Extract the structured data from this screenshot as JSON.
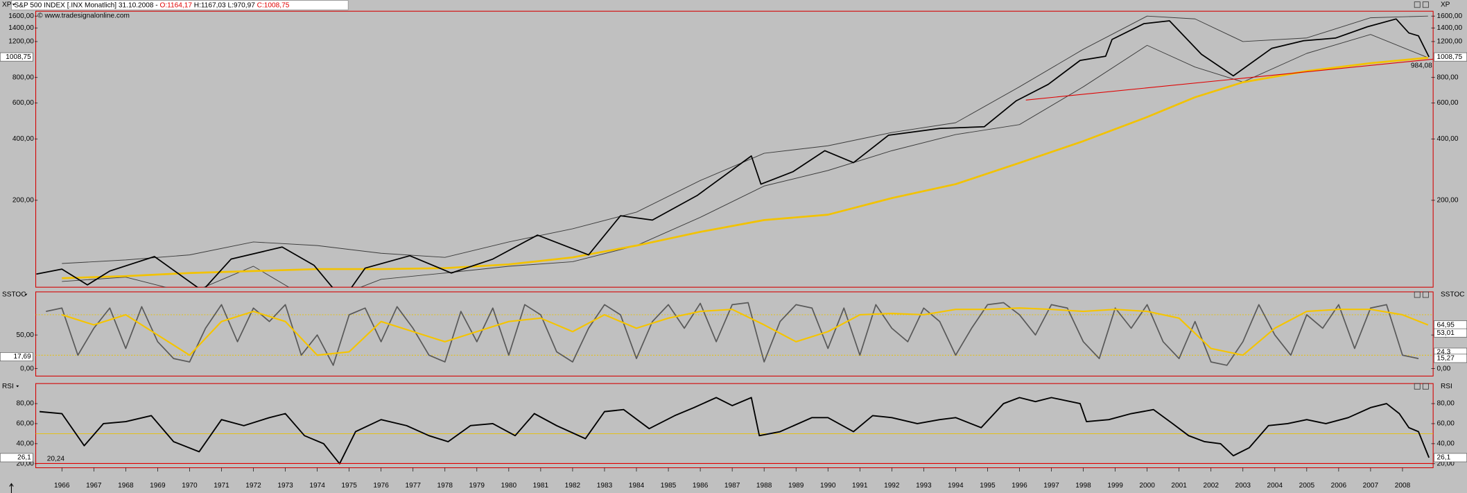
{
  "header": {
    "instrument": "S&P 500 INDEX [.INX  Monatlich] 31.10.2008 -",
    "open": "O:1164,17",
    "high": "H:1167,03",
    "low": "L:970,97",
    "close": "C:1008,75",
    "copyright": "© www.tradesignalonline.com"
  },
  "chart_data": [
    {
      "type": "line",
      "title": "XP",
      "log_y": true,
      "grid": false,
      "xlim": [
        1965.18,
        2008.96
      ],
      "ylim": [
        75,
        1690
      ],
      "yticks": [
        {
          "value": 200,
          "label": "200,00"
        },
        {
          "value": 400,
          "label": "400,00"
        },
        {
          "value": 600,
          "label": "600,00"
        },
        {
          "value": 800,
          "label": "800,00"
        },
        {
          "value": 1200,
          "label": "1200,00"
        },
        {
          "value": 1400,
          "label": "1400,00"
        },
        {
          "value": 1600,
          "label": "1600,00"
        }
      ],
      "series": [
        {
          "color": "#3a3a3a",
          "width": 0.7,
          "x": [
            1966,
            1968,
            1970,
            1972,
            1974,
            1976,
            1978,
            1980,
            1982,
            1984,
            1986,
            1988,
            1990,
            1992,
            1994,
            1996,
            1998,
            2000,
            2001.5,
            2003,
            2005,
            2007,
            2008.8
          ],
          "values": [
            98,
            102,
            108,
            125,
            120,
            110,
            105,
            125,
            145,
            175,
            250,
            340,
            370,
            430,
            480,
            720,
            1100,
            1600,
            1550,
            1200,
            1250,
            1570,
            1600
          ]
        },
        {
          "color": "#3a3a3a",
          "width": 0.7,
          "x": [
            1966,
            1968,
            1970,
            1972,
            1974,
            1976,
            1978,
            1980,
            1982,
            1984,
            1986,
            1988,
            1990,
            1992,
            1994,
            1996,
            1998,
            2000,
            2001.5,
            2003,
            2005,
            2007,
            2008.8
          ],
          "values": [
            80,
            84,
            70,
            95,
            62,
            82,
            88,
            95,
            100,
            120,
            165,
            235,
            280,
            350,
            420,
            470,
            720,
            1150,
            900,
            760,
            1050,
            1300,
            1000
          ]
        },
        {
          "color": "#f2c200",
          "width": 2,
          "x": [
            1966,
            1968,
            1970,
            1972,
            1974,
            1976,
            1978,
            1980,
            1982,
            1984,
            1986,
            1988,
            1990,
            1992,
            1994,
            1996,
            1998,
            2000,
            2001.5,
            2003,
            2005,
            2007,
            2008.8
          ],
          "values": [
            83,
            85,
            88,
            90,
            92,
            92,
            93,
            97,
            105,
            120,
            140,
            160,
            170,
            205,
            240,
            305,
            390,
            512,
            640,
            758,
            860,
            940,
            1000
          ]
        },
        {
          "color": "#e00000",
          "width": 0.8,
          "x": [
            1996.2,
            2008.96
          ],
          "values": [
            620,
            984.08
          ],
          "value_labels": [
            null,
            "984,08"
          ]
        },
        {
          "color": "#000000",
          "width": 1.3,
          "x": [
            1965.2,
            1966.0,
            1966.8,
            1967.5,
            1968.9,
            1970.4,
            1971.3,
            1972.9,
            1973.9,
            1974.8,
            1975.5,
            1976.9,
            1978.2,
            1979.5,
            1980.9,
            1982.5,
            1983.5,
            1984.5,
            1985.9,
            1987.6,
            1987.9,
            1988.9,
            1989.9,
            1990.8,
            1991.9,
            1993.5,
            1994.9,
            1995.9,
            1996.9,
            1997.9,
            1998.7,
            1998.9,
            1999.9,
            2000.7,
            2001.7,
            2002.7,
            2003.9,
            2004.9,
            2005.9,
            2006.9,
            2007.8,
            2008.2,
            2008.5,
            2008.83
          ],
          "values": [
            87,
            92,
            77,
            90,
            106,
            72,
            103,
            118,
            96,
            65,
            93,
            107,
            88,
            103,
            135,
            108,
            168,
            160,
            211,
            330,
            240,
            276,
            350,
            306,
            417,
            450,
            459,
            615,
            740,
            970,
            1017,
            1229,
            1469,
            1517,
            1040,
            815,
            1111,
            1211,
            1248,
            1418,
            1549,
            1322,
            1280,
            1008.75
          ]
        }
      ],
      "last_labels": [
        {
          "value": 1008.75,
          "label": "1008,75",
          "side": "both"
        }
      ]
    },
    {
      "type": "line",
      "title": "SSTOC",
      "grid": false,
      "xlim": [
        1965.18,
        2008.96
      ],
      "ylim": [
        -11,
        114
      ],
      "yticks": [
        {
          "value": 0,
          "label": "0,00"
        },
        {
          "value": 50,
          "label": "50,00"
        }
      ],
      "reference_lines": [
        80,
        20
      ],
      "reference_color": "#e8c000",
      "series": [
        {
          "color": "#5a5a5a",
          "width": 1.3,
          "x": [
            1965.5,
            1966,
            1966.5,
            1967,
            1967.5,
            1968,
            1968.5,
            1969,
            1969.5,
            1970,
            1970.5,
            1971,
            1971.5,
            1972,
            1972.5,
            1973,
            1973.5,
            1974,
            1974.5,
            1975,
            1975.5,
            1976,
            1976.5,
            1977,
            1977.5,
            1978,
            1978.5,
            1979,
            1979.5,
            1980,
            1980.5,
            1981,
            1981.5,
            1982,
            1982.5,
            1983,
            1983.5,
            1984,
            1984.5,
            1985,
            1985.5,
            1986,
            1986.5,
            1987,
            1987.5,
            1988,
            1988.5,
            1989,
            1989.5,
            1990,
            1990.5,
            1991,
            1991.5,
            1992,
            1992.5,
            1993,
            1993.5,
            1994,
            1994.5,
            1995,
            1995.5,
            1996,
            1996.5,
            1997,
            1997.5,
            1998,
            1998.5,
            1999,
            1999.5,
            2000,
            2000.5,
            2001,
            2001.5,
            2002,
            2002.5,
            2003,
            2003.5,
            2004,
            2004.5,
            2005,
            2005.5,
            2006,
            2006.5,
            2007,
            2007.5,
            2008,
            2008.5
          ],
          "values": [
            85,
            90,
            20,
            60,
            90,
            30,
            92,
            40,
            15,
            10,
            60,
            95,
            40,
            90,
            70,
            95,
            20,
            50,
            5,
            80,
            90,
            40,
            92,
            60,
            20,
            10,
            85,
            40,
            90,
            20,
            95,
            80,
            25,
            10,
            60,
            95,
            80,
            15,
            70,
            95,
            60,
            97,
            40,
            95,
            98,
            10,
            70,
            95,
            90,
            30,
            90,
            20,
            95,
            60,
            40,
            90,
            70,
            20,
            60,
            95,
            98,
            80,
            50,
            95,
            90,
            40,
            15,
            90,
            60,
            95,
            40,
            15,
            70,
            10,
            5,
            40,
            95,
            50,
            20,
            80,
            60,
            95,
            30,
            90,
            95,
            20,
            15
          ]
        },
        {
          "color": "#f5c400",
          "width": 1.6,
          "x": [
            1966,
            1967,
            1968,
            1969,
            1970,
            1971,
            1972,
            1973,
            1974,
            1975,
            1976,
            1977,
            1978,
            1979,
            1980,
            1981,
            1982,
            1983,
            1984,
            1985,
            1986,
            1987,
            1988,
            1989,
            1990,
            1991,
            1992,
            1993,
            1994,
            1995,
            1996,
            1997,
            1998,
            1999,
            2000,
            2001,
            2002,
            2003,
            2004,
            2005,
            2006,
            2007,
            2008,
            2008.8
          ],
          "values": [
            80,
            65,
            80,
            50,
            20,
            70,
            85,
            70,
            20,
            25,
            70,
            55,
            40,
            55,
            70,
            75,
            55,
            80,
            60,
            75,
            85,
            88,
            65,
            40,
            55,
            80,
            82,
            80,
            88,
            88,
            90,
            88,
            85,
            88,
            85,
            75,
            30,
            20,
            60,
            85,
            88,
            88,
            80,
            64.95
          ]
        }
      ],
      "last_labels": [
        {
          "value": 64.95,
          "label": "64,95",
          "side": "right"
        },
        {
          "value": 53.01,
          "label": "53,01",
          "side": "right"
        },
        {
          "value": 24.3,
          "label": "24,3",
          "side": "right"
        },
        {
          "value": 15.27,
          "label": "15,27",
          "side": "right"
        },
        {
          "value": 17.69,
          "label": "17,69",
          "side": "left"
        }
      ]
    },
    {
      "type": "line",
      "title": "RSI",
      "grid": false,
      "xlim": [
        1965.18,
        2008.96
      ],
      "ylim": [
        16,
        100
      ],
      "yticks": [
        {
          "value": 20,
          "label": "20,00"
        },
        {
          "value": 40,
          "label": "40,00"
        },
        {
          "value": 60,
          "label": "60,00"
        },
        {
          "value": 80,
          "label": "80,00"
        }
      ],
      "xticks": [
        1966,
        1967,
        1968,
        1969,
        1970,
        1971,
        1972,
        1973,
        1974,
        1975,
        1976,
        1977,
        1978,
        1979,
        1980,
        1981,
        1982,
        1983,
        1984,
        1985,
        1986,
        1987,
        1988,
        1989,
        1990,
        1991,
        1992,
        1993,
        1994,
        1995,
        1996,
        1997,
        1998,
        1999,
        2000,
        2001,
        2002,
        2003,
        2004,
        2005,
        2006,
        2007,
        2008
      ],
      "reference_lines": [
        50
      ],
      "reference_color": "#e8c000",
      "threshold": {
        "value": 20.24,
        "label": "20,24",
        "color": "#e00000"
      },
      "series": [
        {
          "color": "#000000",
          "width": 1.4,
          "x": [
            1965.3,
            1966,
            1966.7,
            1967.3,
            1968,
            1968.8,
            1969.5,
            1970.3,
            1971,
            1971.7,
            1972.5,
            1973,
            1973.6,
            1974.2,
            1974.7,
            1975.2,
            1976,
            1976.8,
            1977.5,
            1978.1,
            1978.8,
            1979.5,
            1980.2,
            1980.8,
            1981.5,
            1982.4,
            1983,
            1983.6,
            1984.4,
            1985.2,
            1985.8,
            1986.5,
            1987,
            1987.6,
            1987.85,
            1988.5,
            1989.5,
            1990,
            1990.8,
            1991.4,
            1992,
            1992.8,
            1993.5,
            1994,
            1994.8,
            1995.5,
            1996,
            1996.5,
            1997,
            1997.9,
            1998.1,
            1998.8,
            1999.5,
            2000.2,
            2000.8,
            2001.3,
            2001.8,
            2002.3,
            2002.7,
            2003.2,
            2003.8,
            2004.4,
            2005,
            2005.6,
            2006.3,
            2007,
            2007.5,
            2007.9,
            2008.2,
            2008.5,
            2008.83
          ],
          "values": [
            72,
            70,
            38,
            60,
            62,
            68,
            42,
            32,
            64,
            58,
            66,
            70,
            48,
            40,
            20,
            52,
            64,
            58,
            48,
            42,
            58,
            60,
            48,
            70,
            58,
            45,
            72,
            74,
            55,
            68,
            76,
            86,
            78,
            86,
            48,
            52,
            66,
            66,
            52,
            68,
            66,
            60,
            64,
            66,
            56,
            80,
            86,
            82,
            86,
            80,
            62,
            64,
            70,
            74,
            60,
            48,
            42,
            40,
            28,
            36,
            58,
            60,
            64,
            60,
            66,
            76,
            80,
            70,
            56,
            52,
            26.1
          ]
        }
      ],
      "last_labels": [
        {
          "value": 26.1,
          "label": "26,1",
          "side": "both"
        }
      ]
    }
  ]
}
